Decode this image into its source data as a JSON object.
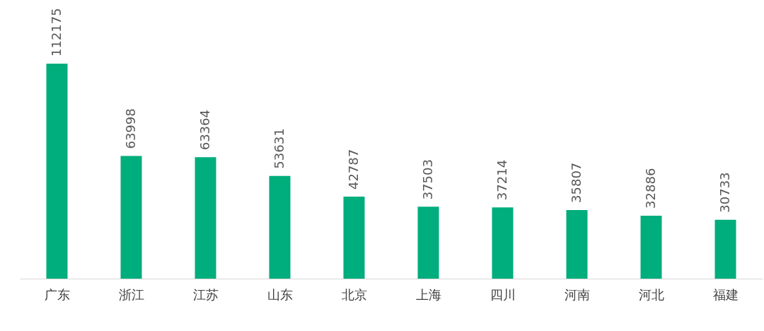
{
  "chart_data": {
    "type": "bar",
    "categories": [
      "广东",
      "浙江",
      "江苏",
      "山东",
      "北京",
      "上海",
      "四川",
      "河南",
      "河北",
      "福建"
    ],
    "values": [
      112175,
      63998,
      63364,
      53631,
      42787,
      37503,
      37214,
      35807,
      32886,
      30733
    ],
    "color": "#00ad7c",
    "data_labels": true
  }
}
